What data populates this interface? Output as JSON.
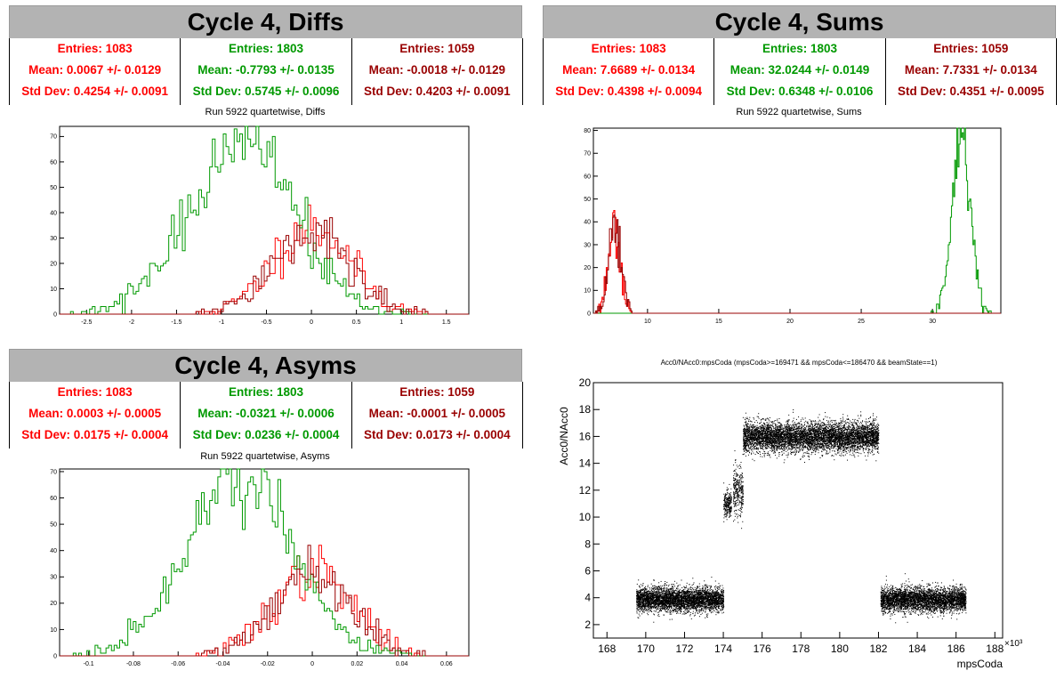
{
  "colors": {
    "s0": "#ff0000",
    "s1": "#009900",
    "s2": "#990000"
  },
  "panels": [
    {
      "title": "Cycle 4, Diffs",
      "stats": [
        {
          "entries": "Entries: 1083",
          "mean": "Mean: 0.0067 +/- 0.0129",
          "std": "Std Dev: 0.4254 +/- 0.0091"
        },
        {
          "entries": "Entries: 1803",
          "mean": "Mean: -0.7793 +/- 0.0135",
          "std": "Std Dev: 0.5745 +/- 0.0096"
        },
        {
          "entries": "Entries: 1059",
          "mean": "Mean: -0.0018 +/- 0.0129",
          "std": "Std Dev: 0.4203 +/- 0.0091"
        }
      ],
      "run_label": "Run 5922 quartetwise, Diffs"
    },
    {
      "title": "Cycle 4, Sums",
      "stats": [
        {
          "entries": "Entries: 1083",
          "mean": "Mean: 7.6689 +/- 0.0134",
          "std": "Std Dev: 0.4398 +/- 0.0094"
        },
        {
          "entries": "Entries: 1803",
          "mean": "Mean: 32.0244 +/- 0.0149",
          "std": "Std Dev: 0.6348 +/- 0.0106"
        },
        {
          "entries": "Entries: 1059",
          "mean": "Mean: 7.7331 +/- 0.0134",
          "std": "Std Dev: 0.4351 +/- 0.0095"
        }
      ],
      "run_label": "Run 5922 quartetwise, Sums"
    },
    {
      "title": "Cycle 4, Asyms",
      "stats": [
        {
          "entries": "Entries: 1083",
          "mean": "Mean: 0.0003 +/- 0.0005",
          "std": "Std Dev: 0.0175 +/- 0.0004"
        },
        {
          "entries": "Entries: 1803",
          "mean": "Mean: -0.0321 +/- 0.0006",
          "std": "Std Dev: 0.0236 +/- 0.0004"
        },
        {
          "entries": "Entries: 1059",
          "mean": "Mean: -0.0001 +/- 0.0005",
          "std": "Std Dev: 0.0173 +/- 0.0004"
        }
      ],
      "run_label": "Run 5922 quartetwise, Asyms"
    }
  ],
  "chart_data": [
    {
      "type": "histogram",
      "title": "Run 5922 quartetwise, Diffs",
      "xlim": [
        -2.8,
        1.75
      ],
      "ylim": [
        0,
        74
      ],
      "xticks": [
        -2.5,
        -2,
        -1.5,
        -1,
        -0.5,
        0,
        0.5,
        1,
        1.5
      ],
      "xtick_labels": [
        "-2.5",
        "-2",
        "-1.5",
        "-1",
        "-0.5",
        "0",
        "0.5",
        "1",
        "1.5"
      ],
      "yticks": [
        0,
        10,
        20,
        30,
        40,
        50,
        60,
        70
      ],
      "ytick_labels": [
        "0",
        "10",
        "20",
        "30",
        "40",
        "50",
        "60",
        "70"
      ],
      "series": [
        {
          "entries": 1083,
          "mean": 0.0067,
          "std": 0.4254,
          "peak": 35,
          "color": "#ff0000"
        },
        {
          "entries": 1803,
          "mean": -0.7793,
          "std": 0.5745,
          "peak": 70,
          "color": "#009900"
        },
        {
          "entries": 1059,
          "mean": -0.0018,
          "std": 0.4203,
          "peak": 34,
          "color": "#990000"
        }
      ]
    },
    {
      "type": "histogram",
      "title": "Run 5922 quartetwise, Sums",
      "xlim": [
        6.2,
        34.8
      ],
      "ylim": [
        0,
        81
      ],
      "xticks": [
        10,
        15,
        20,
        25,
        30
      ],
      "xtick_labels": [
        "10",
        "15",
        "20",
        "25",
        "30"
      ],
      "yticks": [
        0,
        10,
        20,
        30,
        40,
        50,
        60,
        70,
        80
      ],
      "ytick_labels": [
        "0",
        "10",
        "20",
        "30",
        "40",
        "50",
        "60",
        "70",
        "80"
      ],
      "series": [
        {
          "entries": 1083,
          "mean": 7.6689,
          "std": 0.4398,
          "peak": 38,
          "color": "#ff0000"
        },
        {
          "entries": 1803,
          "mean": 32.0244,
          "std": 0.6348,
          "peak": 75,
          "color": "#009900"
        },
        {
          "entries": 1059,
          "mean": 7.7331,
          "std": 0.4351,
          "peak": 37,
          "color": "#990000"
        }
      ]
    },
    {
      "type": "histogram",
      "title": "Run 5922 quartetwise, Asyms",
      "xlim": [
        -0.113,
        0.07
      ],
      "ylim": [
        0,
        71
      ],
      "xticks": [
        -0.1,
        -0.08,
        -0.06,
        -0.04,
        -0.02,
        0,
        0.02,
        0.04,
        0.06
      ],
      "xtick_labels": [
        "-0.1",
        "-0.08",
        "-0.06",
        "-0.04",
        "-0.02",
        "0",
        "0.02",
        "0.04",
        "0.06"
      ],
      "yticks": [
        0,
        10,
        20,
        30,
        40,
        50,
        60,
        70
      ],
      "ytick_labels": [
        "0",
        "10",
        "20",
        "30",
        "40",
        "50",
        "60",
        "70"
      ],
      "series": [
        {
          "entries": 1083,
          "mean": 0.0003,
          "std": 0.0175,
          "peak": 32,
          "color": "#ff0000"
        },
        {
          "entries": 1803,
          "mean": -0.0321,
          "std": 0.0236,
          "peak": 66,
          "color": "#009900"
        },
        {
          "entries": 1059,
          "mean": -0.0001,
          "std": 0.0173,
          "peak": 31,
          "color": "#990000"
        }
      ]
    },
    {
      "type": "scatter",
      "title": "Acc0/NAcc0:mpsCoda (mpsCoda>=169471 && mpsCoda<=186470 && beamState==1)",
      "xlabel": "mpsCoda",
      "ylabel": "Acc0/NAcc0",
      "x_exponent": "×10³",
      "xlim": [
        167.3,
        188.4
      ],
      "ylim": [
        1,
        20
      ],
      "xticks": [
        168,
        170,
        172,
        174,
        176,
        178,
        180,
        182,
        184,
        186,
        188
      ],
      "xtick_labels": [
        "168",
        "170",
        "172",
        "174",
        "176",
        "178",
        "180",
        "182",
        "184",
        "186",
        "188"
      ],
      "yticks": [
        2,
        4,
        6,
        8,
        10,
        12,
        14,
        16,
        18,
        20
      ],
      "ytick_labels": [
        "2",
        "4",
        "6",
        "8",
        "10",
        "12",
        "14",
        "16",
        "18",
        "20"
      ],
      "clusters": [
        {
          "x": [
            169.5,
            174.0
          ],
          "y_center": 3.9,
          "y_spread": 0.45,
          "count": 4200
        },
        {
          "x": [
            174.0,
            174.4
          ],
          "y_center": 11.0,
          "y_spread": 0.5,
          "count": 260
        },
        {
          "x": [
            174.5,
            175.0
          ],
          "y_center": 12.0,
          "y_spread": 0.9,
          "count": 320
        },
        {
          "x": [
            175.0,
            182.0
          ],
          "y_center": 16.0,
          "y_spread": 0.55,
          "count": 6200
        },
        {
          "x": [
            182.1,
            186.5
          ],
          "y_center": 3.9,
          "y_spread": 0.45,
          "count": 4000
        }
      ]
    }
  ]
}
